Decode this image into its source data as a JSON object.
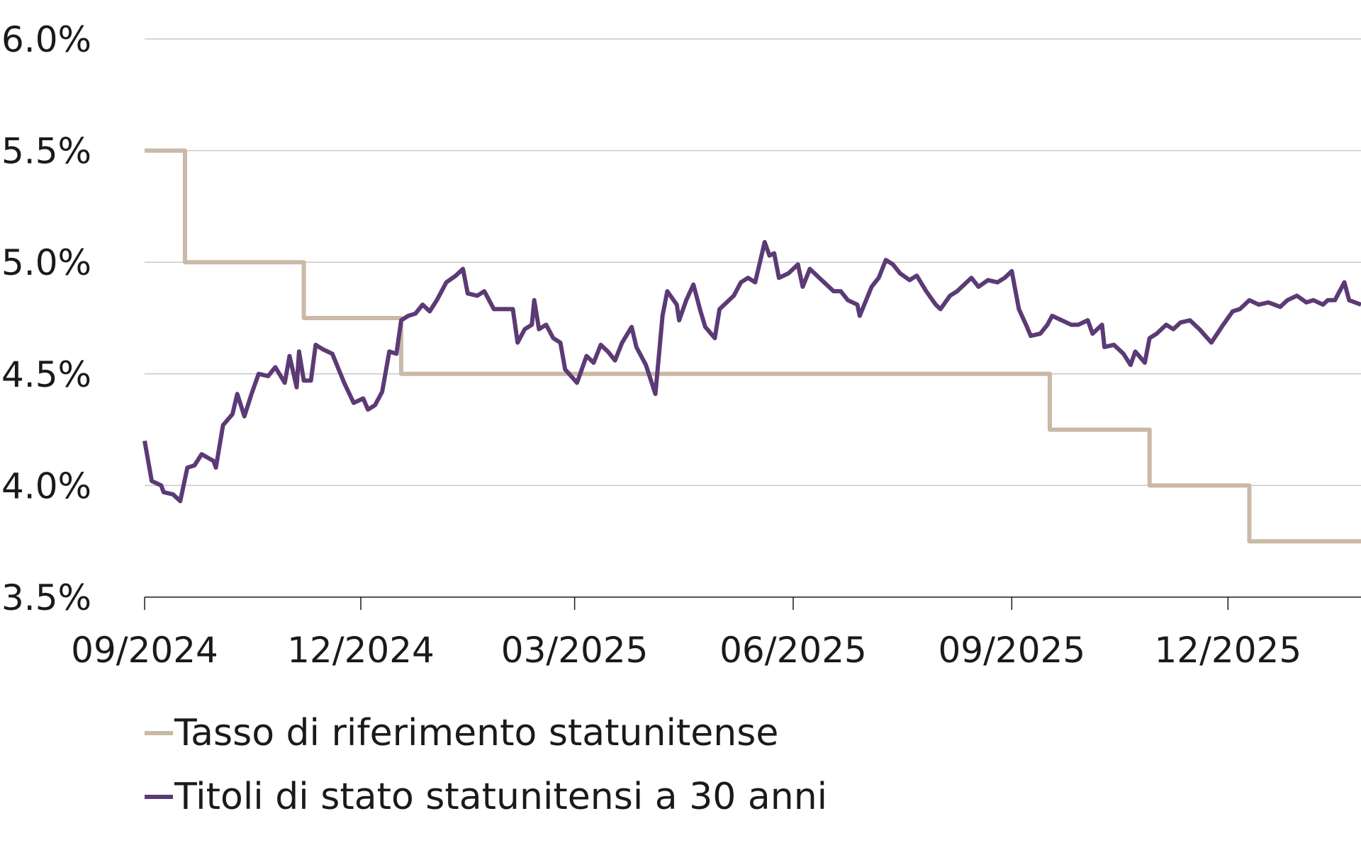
{
  "chart_data": {
    "type": "line",
    "title": "",
    "xlabel": "",
    "ylabel": "",
    "ylim": [
      3.5,
      6.0
    ],
    "xlim": [
      "2024-09-01",
      "2026-01-26"
    ],
    "y_ticks": [
      "3.5%",
      "4.0%",
      "4.5%",
      "5.0%",
      "5.5%",
      "6.0%"
    ],
    "y_tick_values": [
      3.5,
      4.0,
      4.5,
      5.0,
      5.5,
      6.0
    ],
    "x_ticks": [
      "09/2024",
      "12/2024",
      "03/2025",
      "06/2025",
      "09/2025",
      "12/2025"
    ],
    "x_tick_dates": [
      "2024-09-01",
      "2024-12-01",
      "2025-03-01",
      "2025-06-01",
      "2025-09-01",
      "2025-12-01"
    ],
    "grid": "horizontal",
    "legend_position": "bottom-left",
    "series": [
      {
        "name": "Tasso di riferimento statunitense",
        "color": "#c9b9a6",
        "step": true,
        "points": [
          [
            "2024-09-01",
            5.5
          ],
          [
            "2024-09-18",
            5.0
          ],
          [
            "2024-11-07",
            4.75
          ],
          [
            "2024-12-18",
            4.5
          ],
          [
            "2025-09-17",
            4.25
          ],
          [
            "2025-10-29",
            4.0
          ],
          [
            "2025-12-10",
            3.75
          ],
          [
            "2026-01-26",
            3.75
          ]
        ]
      },
      {
        "name": "Titoli di stato statunitensi a 30 anni",
        "color": "#5b3a75",
        "step": false,
        "points": [
          [
            "2024-09-01",
            4.2
          ],
          [
            "2024-09-04",
            4.02
          ],
          [
            "2024-09-08",
            4.0
          ],
          [
            "2024-09-09",
            3.97
          ],
          [
            "2024-09-13",
            3.96
          ],
          [
            "2024-09-16",
            3.93
          ],
          [
            "2024-09-19",
            4.08
          ],
          [
            "2024-09-22",
            4.09
          ],
          [
            "2024-09-25",
            4.14
          ],
          [
            "2024-09-30",
            4.11
          ],
          [
            "2024-10-01",
            4.08
          ],
          [
            "2024-10-04",
            4.27
          ],
          [
            "2024-10-08",
            4.32
          ],
          [
            "2024-10-10",
            4.41
          ],
          [
            "2024-10-13",
            4.31
          ],
          [
            "2024-10-16",
            4.41
          ],
          [
            "2024-10-19",
            4.5
          ],
          [
            "2024-10-23",
            4.49
          ],
          [
            "2024-10-26",
            4.53
          ],
          [
            "2024-10-30",
            4.46
          ],
          [
            "2024-11-01",
            4.58
          ],
          [
            "2024-11-04",
            4.44
          ],
          [
            "2024-11-05",
            4.6
          ],
          [
            "2024-11-07",
            4.47
          ],
          [
            "2024-11-10",
            4.47
          ],
          [
            "2024-11-12",
            4.63
          ],
          [
            "2024-11-15",
            4.61
          ],
          [
            "2024-11-19",
            4.59
          ],
          [
            "2024-11-24",
            4.46
          ],
          [
            "2024-11-28",
            4.37
          ],
          [
            "2024-12-02",
            4.39
          ],
          [
            "2024-12-04",
            4.34
          ],
          [
            "2024-12-07",
            4.36
          ],
          [
            "2024-12-10",
            4.42
          ],
          [
            "2024-12-13",
            4.6
          ],
          [
            "2024-12-16",
            4.59
          ],
          [
            "2024-12-18",
            4.74
          ],
          [
            "2024-12-21",
            4.76
          ],
          [
            "2024-12-24",
            4.77
          ],
          [
            "2024-12-27",
            4.81
          ],
          [
            "2024-12-30",
            4.78
          ],
          [
            "2025-01-02",
            4.83
          ],
          [
            "2025-01-06",
            4.91
          ],
          [
            "2025-01-10",
            4.94
          ],
          [
            "2025-01-13",
            4.97
          ],
          [
            "2025-01-15",
            4.86
          ],
          [
            "2025-01-19",
            4.85
          ],
          [
            "2025-01-22",
            4.87
          ],
          [
            "2025-01-26",
            4.79
          ],
          [
            "2025-01-30",
            4.79
          ],
          [
            "2025-02-03",
            4.79
          ],
          [
            "2025-02-05",
            4.64
          ],
          [
            "2025-02-08",
            4.7
          ],
          [
            "2025-02-11",
            4.72
          ],
          [
            "2025-02-12",
            4.83
          ],
          [
            "2025-02-14",
            4.7
          ],
          [
            "2025-02-17",
            4.72
          ],
          [
            "2025-02-20",
            4.66
          ],
          [
            "2025-02-23",
            4.64
          ],
          [
            "2025-02-25",
            4.52
          ],
          [
            "2025-03-02",
            4.46
          ],
          [
            "2025-03-06",
            4.58
          ],
          [
            "2025-03-09",
            4.55
          ],
          [
            "2025-03-12",
            4.63
          ],
          [
            "2025-03-15",
            4.6
          ],
          [
            "2025-03-18",
            4.56
          ],
          [
            "2025-03-21",
            4.64
          ],
          [
            "2025-03-25",
            4.71
          ],
          [
            "2025-03-27",
            4.62
          ],
          [
            "2025-03-31",
            4.54
          ],
          [
            "2025-04-04",
            4.41
          ],
          [
            "2025-04-07",
            4.76
          ],
          [
            "2025-04-09",
            4.87
          ],
          [
            "2025-04-13",
            4.81
          ],
          [
            "2025-04-14",
            4.74
          ],
          [
            "2025-04-17",
            4.83
          ],
          [
            "2025-04-20",
            4.9
          ],
          [
            "2025-04-23",
            4.78
          ],
          [
            "2025-04-25",
            4.71
          ],
          [
            "2025-04-29",
            4.66
          ],
          [
            "2025-05-01",
            4.79
          ],
          [
            "2025-05-05",
            4.83
          ],
          [
            "2025-05-07",
            4.85
          ],
          [
            "2025-05-10",
            4.91
          ],
          [
            "2025-05-13",
            4.93
          ],
          [
            "2025-05-16",
            4.91
          ],
          [
            "2025-05-20",
            5.09
          ],
          [
            "2025-05-22",
            5.03
          ],
          [
            "2025-05-24",
            5.04
          ],
          [
            "2025-05-26",
            4.93
          ],
          [
            "2025-05-30",
            4.95
          ],
          [
            "2025-06-03",
            4.99
          ],
          [
            "2025-06-05",
            4.89
          ],
          [
            "2025-06-08",
            4.97
          ],
          [
            "2025-06-12",
            4.93
          ],
          [
            "2025-06-15",
            4.9
          ],
          [
            "2025-06-18",
            4.87
          ],
          [
            "2025-06-21",
            4.87
          ],
          [
            "2025-06-24",
            4.83
          ],
          [
            "2025-06-28",
            4.81
          ],
          [
            "2025-06-29",
            4.76
          ],
          [
            "2025-07-04",
            4.89
          ],
          [
            "2025-07-07",
            4.93
          ],
          [
            "2025-07-10",
            5.01
          ],
          [
            "2025-07-13",
            4.99
          ],
          [
            "2025-07-16",
            4.95
          ],
          [
            "2025-07-20",
            4.92
          ],
          [
            "2025-07-23",
            4.94
          ],
          [
            "2025-07-27",
            4.87
          ],
          [
            "2025-07-31",
            4.81
          ],
          [
            "2025-08-02",
            4.79
          ],
          [
            "2025-08-06",
            4.85
          ],
          [
            "2025-08-09",
            4.87
          ],
          [
            "2025-08-12",
            4.9
          ],
          [
            "2025-08-15",
            4.93
          ],
          [
            "2025-08-18",
            4.89
          ],
          [
            "2025-08-22",
            4.92
          ],
          [
            "2025-08-26",
            4.91
          ],
          [
            "2025-08-29",
            4.93
          ],
          [
            "2025-09-01",
            4.96
          ],
          [
            "2025-09-04",
            4.79
          ],
          [
            "2025-09-07",
            4.72
          ],
          [
            "2025-09-09",
            4.67
          ],
          [
            "2025-09-13",
            4.68
          ],
          [
            "2025-09-16",
            4.72
          ],
          [
            "2025-09-18",
            4.76
          ],
          [
            "2025-09-22",
            4.74
          ],
          [
            "2025-09-26",
            4.72
          ],
          [
            "2025-09-29",
            4.72
          ],
          [
            "2025-10-03",
            4.74
          ],
          [
            "2025-10-05",
            4.68
          ],
          [
            "2025-10-09",
            4.72
          ],
          [
            "2025-10-10",
            4.62
          ],
          [
            "2025-10-14",
            4.63
          ],
          [
            "2025-10-18",
            4.59
          ],
          [
            "2025-10-21",
            4.54
          ],
          [
            "2025-10-23",
            4.6
          ],
          [
            "2025-10-27",
            4.55
          ],
          [
            "2025-10-29",
            4.66
          ],
          [
            "2025-11-01",
            4.68
          ],
          [
            "2025-11-05",
            4.72
          ],
          [
            "2025-11-08",
            4.7
          ],
          [
            "2025-11-11",
            4.73
          ],
          [
            "2025-11-15",
            4.74
          ],
          [
            "2025-11-19",
            4.7
          ],
          [
            "2025-11-24",
            4.64
          ],
          [
            "2025-11-29",
            4.72
          ],
          [
            "2025-12-03",
            4.78
          ],
          [
            "2025-12-06",
            4.79
          ],
          [
            "2025-12-10",
            4.83
          ],
          [
            "2025-12-14",
            4.81
          ],
          [
            "2025-12-18",
            4.82
          ],
          [
            "2025-12-23",
            4.8
          ],
          [
            "2025-12-26",
            4.83
          ],
          [
            "2025-12-30",
            4.85
          ],
          [
            "2026-01-03",
            4.82
          ],
          [
            "2026-01-06",
            4.83
          ],
          [
            "2026-01-10",
            4.81
          ],
          [
            "2026-01-12",
            4.83
          ],
          [
            "2026-01-15",
            4.83
          ],
          [
            "2026-01-19",
            4.91
          ],
          [
            "2026-01-21",
            4.83
          ],
          [
            "2026-01-26",
            4.81
          ]
        ]
      }
    ]
  }
}
